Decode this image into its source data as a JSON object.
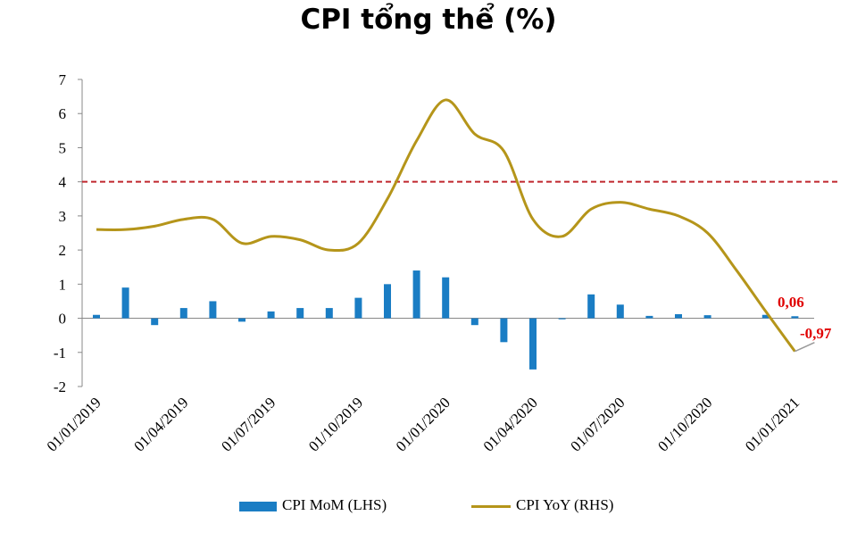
{
  "title": "CPI tổng thể (%)",
  "chart_data": {
    "type": "bar+line",
    "title": "CPI tổng thể (%)",
    "ylim": [
      -2,
      7
    ],
    "yticks": [
      "7",
      "6",
      "5",
      "4",
      "3",
      "2",
      "1",
      "0",
      "-1",
      "-2"
    ],
    "x_tick_labels": [
      "01/01/2019",
      "01/04/2019",
      "01/07/2019",
      "01/10/2019",
      "01/01/2020",
      "01/04/2020",
      "01/07/2020",
      "01/10/2020",
      "01/01/2021"
    ],
    "months": [
      "01/2019",
      "02/2019",
      "03/2019",
      "04/2019",
      "05/2019",
      "06/2019",
      "07/2019",
      "08/2019",
      "09/2019",
      "10/2019",
      "11/2019",
      "12/2019",
      "01/2020",
      "02/2020",
      "03/2020",
      "04/2020",
      "05/2020",
      "06/2020",
      "07/2020",
      "08/2020",
      "09/2020",
      "10/2020",
      "11/2020",
      "12/2020",
      "01/2021"
    ],
    "series": [
      {
        "name": "CPI MoM (LHS)",
        "kind": "bar",
        "color": "#1a7dc4",
        "values": [
          0.1,
          0.9,
          -0.2,
          0.3,
          0.5,
          -0.1,
          0.2,
          0.3,
          0.3,
          0.6,
          1.0,
          1.4,
          1.2,
          -0.2,
          -0.7,
          -1.5,
          -0.03,
          0.7,
          0.4,
          0.07,
          0.12,
          0.09,
          null,
          0.1,
          0.06
        ]
      },
      {
        "name": "CPI YoY (RHS)",
        "kind": "line",
        "color": "#b5951a",
        "values": [
          2.6,
          2.6,
          2.7,
          2.9,
          2.9,
          2.2,
          2.4,
          2.3,
          2.0,
          2.2,
          3.5,
          5.2,
          6.4,
          5.4,
          4.9,
          2.9,
          2.4,
          3.2,
          3.4,
          3.2,
          3.0,
          2.5,
          1.4,
          0.2,
          -0.97
        ]
      }
    ],
    "reference_line": {
      "value": 4,
      "style": "dashed",
      "color": "#c0272d"
    },
    "annotations": [
      "0,06",
      "-0,97"
    ],
    "legend_position": "bottom"
  }
}
